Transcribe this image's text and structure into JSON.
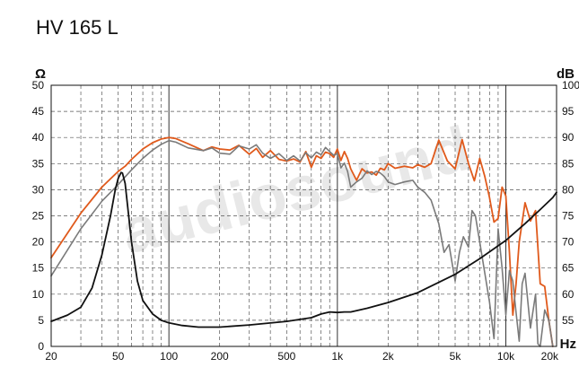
{
  "title": "HV 165 L",
  "watermark": "audiosound",
  "chart_data": {
    "type": "line",
    "x_scale": "log",
    "xlim": [
      20,
      20000
    ],
    "xlabel": "Hz",
    "x_ticks": [
      {
        "value": 20,
        "label": "20"
      },
      {
        "value": 50,
        "label": "50"
      },
      {
        "value": 100,
        "label": "100"
      },
      {
        "value": 200,
        "label": "200"
      },
      {
        "value": 500,
        "label": "500"
      },
      {
        "value": 1000,
        "label": "1k"
      },
      {
        "value": 2000,
        "label": "2k"
      },
      {
        "value": 5000,
        "label": "5k"
      },
      {
        "value": 10000,
        "label": "10k"
      },
      {
        "value": 20000,
        "label": "20k"
      }
    ],
    "y_left": {
      "label": "Ω",
      "lim": [
        0,
        50
      ],
      "ticks": [
        0,
        5,
        10,
        15,
        20,
        25,
        30,
        35,
        40,
        45,
        50
      ]
    },
    "y_right": {
      "label": "dB",
      "lim": [
        50,
        100
      ],
      "ticks": [
        55,
        60,
        65,
        70,
        75,
        80,
        85,
        90,
        95,
        100
      ]
    },
    "grid": true,
    "colors": {
      "spl_on_axis": "#e05a1c",
      "spl_off_axis": "#7a7a7a",
      "impedance": "#111111",
      "grid": "#555555"
    },
    "series": [
      {
        "key": "spl_on_axis",
        "axis": "right",
        "x": [
          20,
          30,
          40,
          50,
          55,
          60,
          70,
          80,
          90,
          100,
          110,
          130,
          160,
          180,
          200,
          230,
          260,
          300,
          330,
          360,
          400,
          450,
          500,
          550,
          600,
          650,
          700,
          750,
          800,
          850,
          900,
          950,
          1000,
          1050,
          1100,
          1150,
          1200,
          1300,
          1400,
          1500,
          1600,
          1700,
          1800,
          1900,
          2000,
          2200,
          2500,
          2800,
          3000,
          3300,
          3600,
          4000,
          4500,
          5000,
          5500,
          6000,
          6500,
          7000,
          7500,
          8000,
          8500,
          9000,
          9500,
          10000,
          10500,
          11000,
          11500,
          12000,
          13000,
          14000,
          15000,
          16000,
          17000,
          18000,
          19000
        ],
        "y": [
          67,
          75.5,
          80.5,
          83.5,
          84.5,
          85.8,
          87.8,
          89,
          89.7,
          90,
          89.8,
          88.8,
          87.5,
          88.2,
          87.8,
          87.6,
          88.5,
          86.8,
          87.9,
          86.2,
          87.5,
          85.8,
          85.5,
          85.9,
          85.3,
          87.3,
          84.3,
          86.5,
          86,
          87.2,
          86.9,
          86.2,
          87.8,
          85.6,
          87.3,
          86,
          84,
          81.8,
          84,
          83.2,
          83.4,
          82.8,
          84.1,
          83.8,
          85,
          84.1,
          84.5,
          84.2,
          84.8,
          84.3,
          85,
          89.5,
          85.5,
          84,
          89.6,
          85,
          81.7,
          86,
          82.5,
          78.5,
          73.8,
          74.5,
          80.5,
          78.8,
          68,
          56,
          62,
          70,
          77.5,
          74,
          76,
          62,
          61.5,
          55,
          50
        ]
      },
      {
        "key": "spl_off_axis",
        "axis": "right",
        "x": [
          20,
          30,
          40,
          50,
          60,
          70,
          80,
          90,
          100,
          110,
          130,
          160,
          180,
          200,
          230,
          260,
          300,
          330,
          360,
          400,
          450,
          500,
          550,
          600,
          650,
          700,
          750,
          800,
          850,
          900,
          950,
          1000,
          1050,
          1100,
          1150,
          1200,
          1300,
          1400,
          1500,
          1600,
          1700,
          1800,
          1900,
          2000,
          2200,
          2500,
          2800,
          3000,
          3300,
          3600,
          4000,
          4300,
          4600,
          5000,
          5300,
          5600,
          6000,
          6300,
          6600,
          7000,
          7500,
          8000,
          8500,
          9000,
          9500,
          10000,
          10500,
          11000,
          11500,
          12000,
          12500,
          13000,
          14000,
          15000,
          15500,
          16000,
          17000,
          18000,
          19000
        ],
        "y": [
          63.5,
          72.5,
          77.8,
          81,
          83.8,
          86,
          87.6,
          88.7,
          89.4,
          89.1,
          88,
          87.5,
          88,
          87,
          86.8,
          88.4,
          87.8,
          88.6,
          87,
          86,
          86.9,
          85.6,
          86.5,
          85.5,
          87.1,
          86.1,
          87.2,
          86.7,
          88.1,
          87.3,
          86.6,
          86.9,
          84.2,
          85.1,
          83.5,
          80.5,
          81.5,
          82.2,
          83.6,
          82.9,
          83.5,
          83.2,
          82.5,
          81.5,
          81,
          81.5,
          81.8,
          80.5,
          79.5,
          78,
          73.5,
          68,
          69.5,
          62.5,
          68,
          71,
          69,
          76,
          75,
          70,
          64,
          58.5,
          51.5,
          72.5,
          65,
          56,
          64.5,
          62.5,
          56.5,
          51,
          62,
          64,
          53.5,
          60,
          50.5,
          50,
          57,
          55,
          50
        ]
      },
      {
        "key": "impedance",
        "axis": "left",
        "x": [
          20,
          25,
          30,
          35,
          40,
          45,
          48,
          50,
          52,
          53,
          55,
          57,
          60,
          65,
          70,
          80,
          90,
          100,
          120,
          150,
          200,
          300,
          500,
          700,
          800,
          900,
          1000,
          1100,
          1200,
          1500,
          2000,
          3000,
          5000,
          7000,
          10000,
          13000,
          16000,
          19000,
          20000
        ],
        "y": [
          4.8,
          6,
          7.5,
          11.2,
          17.5,
          25,
          30,
          32.2,
          33.3,
          33.2,
          31.2,
          26.5,
          20,
          12.5,
          8.8,
          6.2,
          5,
          4.5,
          4,
          3.7,
          3.7,
          4.1,
          4.8,
          5.5,
          6.2,
          6.6,
          6.5,
          6.6,
          6.6,
          7.3,
          8.4,
          10.3,
          13.8,
          16.8,
          20.3,
          23.5,
          26.2,
          28.5,
          29.5
        ]
      }
    ]
  }
}
